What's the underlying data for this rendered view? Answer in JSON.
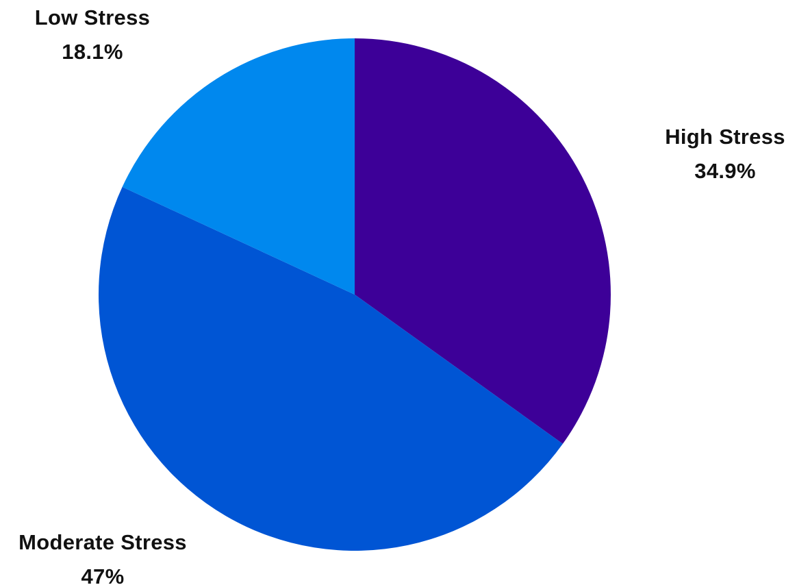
{
  "chart_data": {
    "type": "pie",
    "slices": [
      {
        "label": "High Stress",
        "value": 34.9,
        "value_label": "34.9%",
        "color": "#3d0098"
      },
      {
        "label": "Moderate Stress",
        "value": 47,
        "value_label": "47%",
        "color": "#0055d4"
      },
      {
        "label": "Low Stress",
        "value": 18.1,
        "value_label": "18.1%",
        "color": "#0088ee"
      }
    ],
    "start_angle": "12 o'clock",
    "direction": "clockwise",
    "legend": "none"
  }
}
